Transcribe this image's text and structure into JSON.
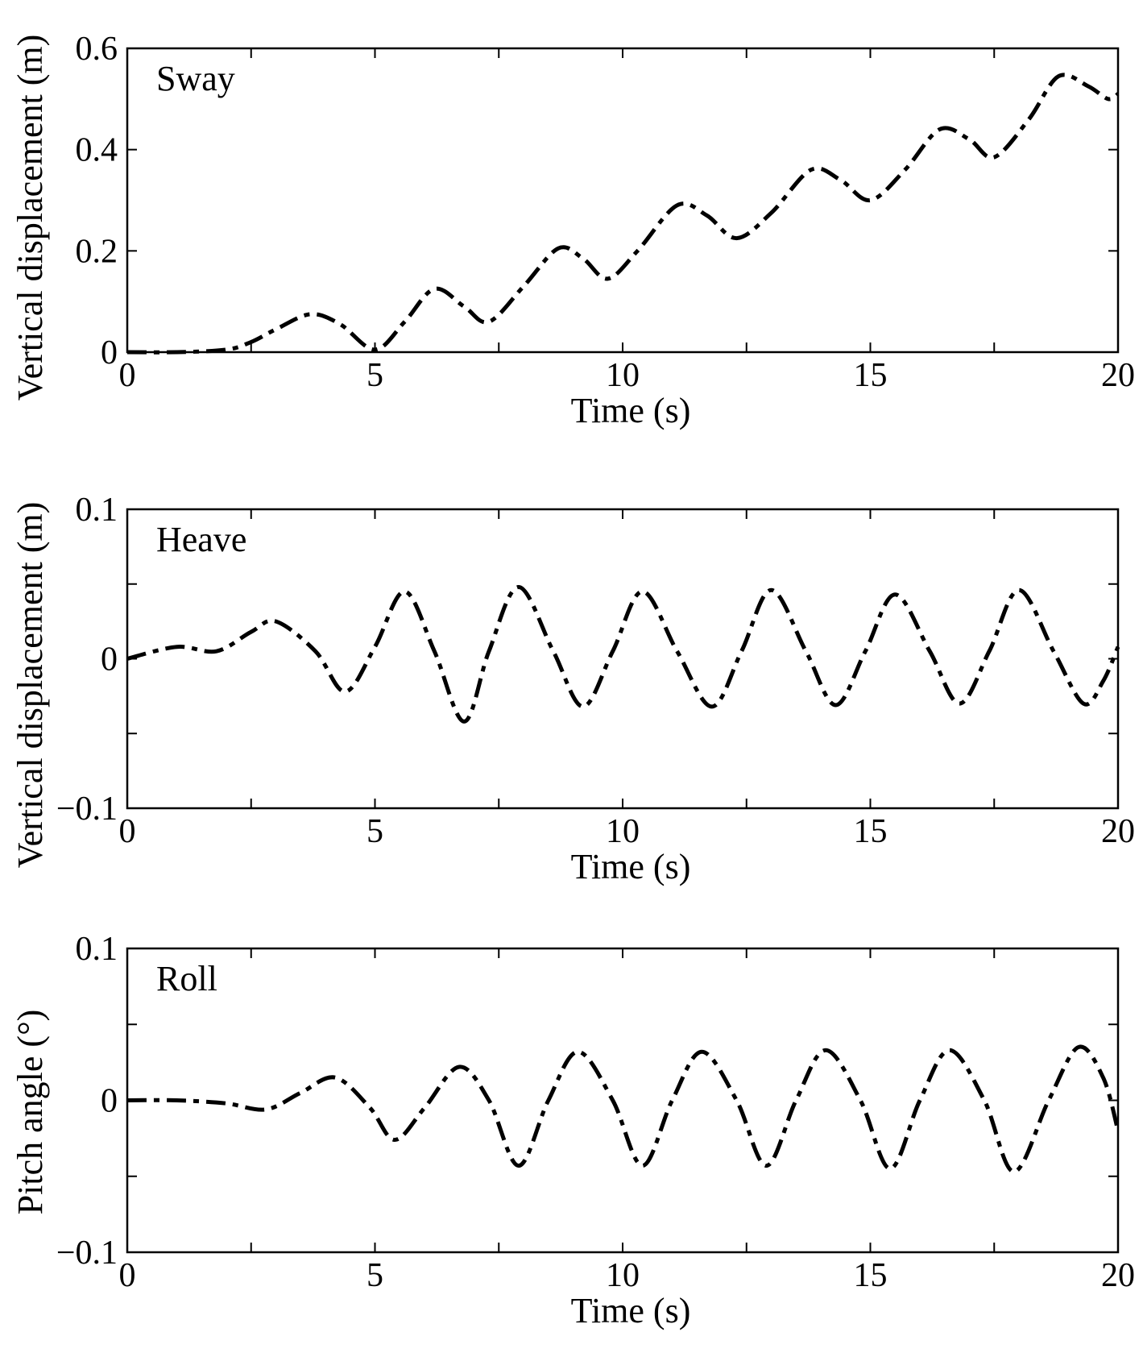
{
  "chart_data": [
    {
      "type": "line",
      "panel_label": "Sway",
      "xlabel": "Time (s)",
      "ylabel": "Vertical displacement (m)",
      "xlim": [
        0,
        20
      ],
      "ylim": [
        0,
        0.6
      ],
      "xticks": [
        0,
        5,
        10,
        15,
        20
      ],
      "xtick_labels": [
        "0",
        "5",
        "10",
        "15",
        "20"
      ],
      "yticks": [
        0,
        0.2,
        0.4,
        0.6
      ],
      "ytick_labels": [
        "0",
        "0.2",
        "0.4",
        "0.6"
      ],
      "grid": false,
      "series": [
        {
          "x": [
            0,
            1,
            2,
            2.5,
            3,
            3.7,
            4.3,
            5.0,
            5.6,
            6.2,
            6.8,
            7.3,
            8.0,
            8.7,
            9.2,
            9.7,
            10.3,
            11.1,
            11.7,
            12.3,
            13.0,
            13.8,
            14.4,
            15.0,
            15.7,
            16.4,
            17.0,
            17.5,
            18.2,
            18.8,
            19.4,
            19.8,
            20.0
          ],
          "y": [
            0,
            0,
            0.005,
            0.02,
            0.045,
            0.075,
            0.055,
            0.005,
            0.06,
            0.125,
            0.09,
            0.06,
            0.13,
            0.205,
            0.185,
            0.145,
            0.2,
            0.29,
            0.27,
            0.225,
            0.275,
            0.36,
            0.34,
            0.3,
            0.36,
            0.44,
            0.42,
            0.385,
            0.46,
            0.545,
            0.525,
            0.5,
            0.51
          ]
        }
      ]
    },
    {
      "type": "line",
      "panel_label": "Heave",
      "xlabel": "Time (s)",
      "ylabel": "Vertical displacement (m)",
      "xlim": [
        0,
        20
      ],
      "ylim": [
        -0.1,
        0.1
      ],
      "xticks": [
        0,
        5,
        10,
        15,
        20
      ],
      "xtick_labels": [
        "0",
        "5",
        "10",
        "15",
        "20"
      ],
      "yticks": [
        -0.1,
        0,
        0.1
      ],
      "ytick_labels": [
        "−0.1",
        "0",
        "0.1"
      ],
      "minor_yticks": [
        -0.05,
        0.05
      ],
      "grid": false,
      "series": [
        {
          "x": [
            0,
            1,
            1.8,
            2.5,
            3.0,
            3.8,
            4.4,
            5.0,
            5.6,
            6.2,
            6.8,
            7.3,
            7.9,
            8.6,
            9.2,
            9.8,
            10.4,
            11.1,
            11.8,
            12.4,
            13.0,
            13.7,
            14.3,
            14.9,
            15.5,
            16.2,
            16.8,
            17.4,
            18.0,
            18.7,
            19.3,
            19.7,
            20.0
          ],
          "y": [
            0,
            0.008,
            0.005,
            0.018,
            0.025,
            0.005,
            -0.022,
            0.008,
            0.045,
            0.005,
            -0.042,
            0.005,
            0.048,
            0.005,
            -0.032,
            0.005,
            0.045,
            0.005,
            -0.032,
            0.005,
            0.046,
            0.005,
            -0.031,
            0.005,
            0.043,
            0.005,
            -0.03,
            0.005,
            0.046,
            0.005,
            -0.03,
            -0.015,
            0.008
          ]
        }
      ]
    },
    {
      "type": "line",
      "panel_label": "Roll",
      "xlabel": "Time (s)",
      "ylabel": "Pitch angle (°)",
      "xlim": [
        0,
        20
      ],
      "ylim": [
        -0.1,
        0.1
      ],
      "xticks": [
        0,
        5,
        10,
        15,
        20
      ],
      "xtick_labels": [
        "0",
        "5",
        "10",
        "15",
        "20"
      ],
      "yticks": [
        -0.1,
        0,
        0.1
      ],
      "ytick_labels": [
        "−0.1",
        "0",
        "0.1"
      ],
      "minor_yticks": [
        -0.05,
        0.05
      ],
      "grid": false,
      "series": [
        {
          "x": [
            0,
            1,
            2,
            2.8,
            3.5,
            4.2,
            4.9,
            5.4,
            6.0,
            6.7,
            7.3,
            7.9,
            8.5,
            9.1,
            9.8,
            10.4,
            11.0,
            11.6,
            12.3,
            12.9,
            13.5,
            14.1,
            14.8,
            15.4,
            16.0,
            16.6,
            17.3,
            17.9,
            18.6,
            19.2,
            19.7,
            20.0
          ],
          "y": [
            0,
            0,
            -0.002,
            -0.006,
            0.005,
            0.015,
            -0.005,
            -0.026,
            -0.005,
            0.022,
            0,
            -0.043,
            0,
            0.032,
            0,
            -0.043,
            0,
            0.032,
            0,
            -0.043,
            0,
            0.033,
            0,
            -0.045,
            0,
            0.033,
            0,
            -0.047,
            0,
            0.035,
            0.015,
            -0.02
          ]
        }
      ]
    }
  ]
}
